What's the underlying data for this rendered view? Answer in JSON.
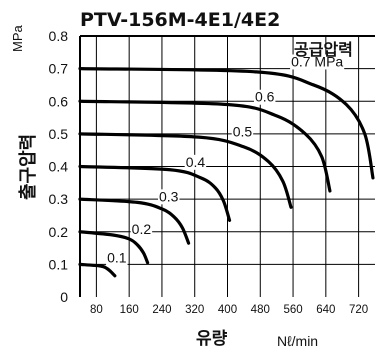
{
  "chart_data": {
    "type": "line",
    "title": "PTV-156M-4E1/4E2",
    "xlabel": "유량",
    "xunit": "Nℓ/min",
    "ylabel": "출구압력",
    "yunit": "MPa",
    "legend_title": "공급압력",
    "grid": true,
    "xlim": [
      40,
      760
    ],
    "ylim": [
      0,
      0.8
    ],
    "xticks": [
      80,
      160,
      240,
      320,
      400,
      480,
      560,
      640,
      720
    ],
    "yticks": [
      0,
      0.1,
      0.2,
      0.3,
      0.4,
      0.5,
      0.6,
      0.7,
      0.8
    ],
    "series": [
      {
        "name": "0.1",
        "label": "0.1",
        "x": [
          40,
          90,
          105,
          115,
          125
        ],
        "y": [
          0.1,
          0.095,
          0.088,
          0.078,
          0.065
        ]
      },
      {
        "name": "0.2",
        "label": "0.2",
        "x": [
          40,
          120,
          160,
          180,
          195,
          205
        ],
        "y": [
          0.2,
          0.19,
          0.178,
          0.16,
          0.135,
          0.105
        ]
      },
      {
        "name": "0.3",
        "label": "0.3",
        "x": [
          40,
          180,
          240,
          270,
          290,
          305
        ],
        "y": [
          0.3,
          0.29,
          0.27,
          0.245,
          0.212,
          0.165
        ]
      },
      {
        "name": "0.4",
        "label": "0.4",
        "x": [
          40,
          260,
          335,
          370,
          390,
          405
        ],
        "y": [
          0.4,
          0.39,
          0.365,
          0.335,
          0.295,
          0.235
        ]
      },
      {
        "name": "0.5",
        "label": "0.5",
        "x": [
          40,
          330,
          440,
          500,
          535,
          555
        ],
        "y": [
          0.5,
          0.49,
          0.46,
          0.415,
          0.355,
          0.275
        ]
      },
      {
        "name": "0.6",
        "label": "0.6",
        "x": [
          40,
          400,
          520,
          590,
          630,
          650
        ],
        "y": [
          0.6,
          0.59,
          0.555,
          0.5,
          0.43,
          0.325
        ]
      },
      {
        "name": "0.7",
        "label": "0.7 MPa",
        "x": [
          40,
          470,
          610,
          690,
          735,
          755
        ],
        "y": [
          0.7,
          0.69,
          0.65,
          0.59,
          0.5,
          0.365
        ]
      }
    ]
  }
}
